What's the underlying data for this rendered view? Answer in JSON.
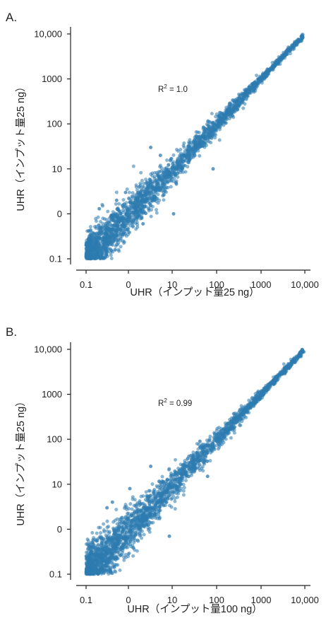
{
  "colors": {
    "point": "#2e7bb0",
    "axis": "#222222"
  },
  "chart_data": [
    {
      "type": "scatter",
      "panel_label": "A.",
      "xlabel": "UHR（インプット量25 ng）",
      "ylabel": "UHR（インプット量25 ng）",
      "log_scale": true,
      "tick_labels": [
        "0.1",
        "0",
        "10",
        "100",
        "1000",
        "10,000"
      ],
      "xlim": [
        0.1,
        10000
      ],
      "ylim": [
        0.1,
        10000
      ],
      "annotation": {
        "r_label": "R",
        "r_exp": "2",
        "r_value": " = 1.0"
      },
      "points": [
        [
          0.15,
          0.18
        ],
        [
          0.3,
          0.25
        ],
        [
          1.5,
          1.4
        ],
        [
          12,
          11
        ],
        [
          120,
          130
        ],
        [
          1200,
          1150
        ],
        [
          8500,
          9000
        ],
        [
          10,
          1.0
        ],
        [
          80,
          10
        ],
        [
          2,
          0.6
        ],
        [
          0.8,
          3
        ],
        [
          5,
          20
        ],
        [
          0.5,
          2
        ],
        [
          0.2,
          1.3
        ],
        [
          3,
          30
        ]
      ],
      "trend": {
        "x_start": 0.1,
        "x_end": 9000,
        "spread": 0.45
      }
    },
    {
      "type": "scatter",
      "panel_label": "B.",
      "xlabel": "UHR（インプット量100 ng）",
      "ylabel": "UHR（インプット量25 ng）",
      "log_scale": true,
      "tick_labels": [
        "0.1",
        "0",
        "10",
        "100",
        "1000",
        "10,000"
      ],
      "xlim": [
        0.1,
        10000
      ],
      "ylim": [
        0.1,
        10000
      ],
      "annotation": {
        "r_label": "R",
        "r_exp": "2",
        "r_value": " = 0.99"
      },
      "points": [
        [
          0.15,
          0.15
        ],
        [
          0.4,
          0.3
        ],
        [
          2,
          1.8
        ],
        [
          15,
          14
        ],
        [
          150,
          140
        ],
        [
          1500,
          1600
        ],
        [
          9000,
          8800
        ],
        [
          40,
          90
        ],
        [
          8,
          0.7
        ],
        [
          0.4,
          4
        ],
        [
          1,
          8
        ],
        [
          0.3,
          3
        ],
        [
          60,
          15
        ],
        [
          3,
          25
        ]
      ],
      "trend": {
        "x_start": 0.1,
        "x_end": 9000,
        "spread": 0.5
      }
    }
  ]
}
